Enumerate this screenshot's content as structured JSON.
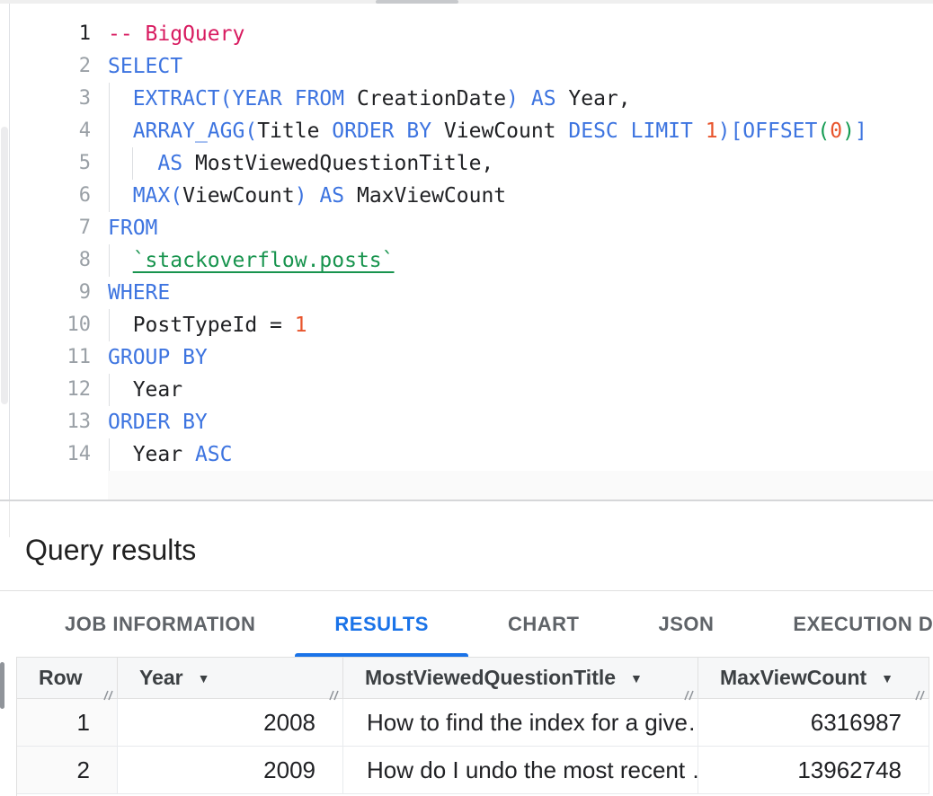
{
  "colors": {
    "keyword": "#3d74e0",
    "comment": "#d81b60",
    "number": "#e8542c",
    "nested_paren": "#149b52",
    "table_reference": "#18944e",
    "accent_active_tab": "#1a73e8",
    "code_text": "#202124"
  },
  "editor": {
    "lines": [
      {
        "num": "1",
        "active": true,
        "tokens": [
          {
            "t": "-- BigQuery",
            "c": "c"
          }
        ]
      },
      {
        "num": "2",
        "active": false,
        "tokens": [
          {
            "t": "SELECT",
            "c": "k"
          }
        ]
      },
      {
        "num": "3",
        "active": false,
        "tokens": [
          {
            "t": "  ",
            "c": "p"
          },
          {
            "t": "EXTRACT(YEAR FROM",
            "c": "k"
          },
          {
            "t": " CreationDate",
            "c": "p"
          },
          {
            "t": ")",
            "c": "k"
          },
          {
            "t": " ",
            "c": "p"
          },
          {
            "t": "AS",
            "c": "k"
          },
          {
            "t": " Year,",
            "c": "p"
          }
        ]
      },
      {
        "num": "4",
        "active": false,
        "tokens": [
          {
            "t": "  ",
            "c": "p"
          },
          {
            "t": "ARRAY_AGG(",
            "c": "k"
          },
          {
            "t": "Title ",
            "c": "p"
          },
          {
            "t": "ORDER BY",
            "c": "k"
          },
          {
            "t": " ViewCount ",
            "c": "p"
          },
          {
            "t": "DESC LIMIT",
            "c": "k"
          },
          {
            "t": " ",
            "c": "p"
          },
          {
            "t": "1",
            "c": "n"
          },
          {
            "t": ")[OFFSET",
            "c": "k"
          },
          {
            "t": "(",
            "c": "g"
          },
          {
            "t": "0",
            "c": "n"
          },
          {
            "t": ")",
            "c": "g"
          },
          {
            "t": "]",
            "c": "k"
          }
        ]
      },
      {
        "num": "5",
        "active": false,
        "tokens": [
          {
            "t": "    ",
            "c": "p"
          },
          {
            "t": "AS",
            "c": "k"
          },
          {
            "t": " MostViewedQuestionTitle,",
            "c": "p"
          }
        ]
      },
      {
        "num": "6",
        "active": false,
        "tokens": [
          {
            "t": "  ",
            "c": "p"
          },
          {
            "t": "MAX(",
            "c": "k"
          },
          {
            "t": "ViewCount",
            "c": "p"
          },
          {
            "t": ")",
            "c": "k"
          },
          {
            "t": " ",
            "c": "p"
          },
          {
            "t": "AS",
            "c": "k"
          },
          {
            "t": " MaxViewCount",
            "c": "p"
          }
        ]
      },
      {
        "num": "7",
        "active": false,
        "tokens": [
          {
            "t": "FROM",
            "c": "k"
          }
        ]
      },
      {
        "num": "8",
        "active": false,
        "tokens": [
          {
            "t": "  ",
            "c": "p"
          },
          {
            "t": "`stackoverflow.posts`",
            "c": "t"
          }
        ]
      },
      {
        "num": "9",
        "active": false,
        "tokens": [
          {
            "t": "WHERE",
            "c": "k"
          }
        ]
      },
      {
        "num": "10",
        "active": false,
        "tokens": [
          {
            "t": "  PostTypeId = ",
            "c": "p"
          },
          {
            "t": "1",
            "c": "n"
          }
        ]
      },
      {
        "num": "11",
        "active": false,
        "tokens": [
          {
            "t": "GROUP BY",
            "c": "k"
          }
        ]
      },
      {
        "num": "12",
        "active": false,
        "tokens": [
          {
            "t": "  Year",
            "c": "p"
          }
        ]
      },
      {
        "num": "13",
        "active": false,
        "tokens": [
          {
            "t": "ORDER BY",
            "c": "k"
          }
        ]
      },
      {
        "num": "14",
        "active": false,
        "tokens": [
          {
            "t": "  Year ",
            "c": "p"
          },
          {
            "t": "ASC",
            "c": "k"
          }
        ]
      }
    ]
  },
  "results_panel": {
    "title": "Query results",
    "tabs": [
      {
        "label": "JOB INFORMATION",
        "active": false
      },
      {
        "label": "RESULTS",
        "active": true
      },
      {
        "label": "CHART",
        "active": false
      },
      {
        "label": "JSON",
        "active": false
      },
      {
        "label": "EXECUTION DETAILS",
        "active": false
      }
    ]
  },
  "table": {
    "columns": [
      {
        "label": "Row",
        "sortable": false,
        "align": "num"
      },
      {
        "label": "Year",
        "sortable": true,
        "align": "num"
      },
      {
        "label": "MostViewedQuestionTitle",
        "sortable": true,
        "align": "txt"
      },
      {
        "label": "MaxViewCount",
        "sortable": true,
        "align": "num"
      }
    ],
    "rows": [
      [
        "1",
        "2008",
        "How to find the index for a give…",
        "6316987"
      ],
      [
        "2",
        "2009",
        "How do I undo the most recent …",
        "13962748"
      ]
    ]
  },
  "icons": {
    "sort_arrow": "▼"
  }
}
